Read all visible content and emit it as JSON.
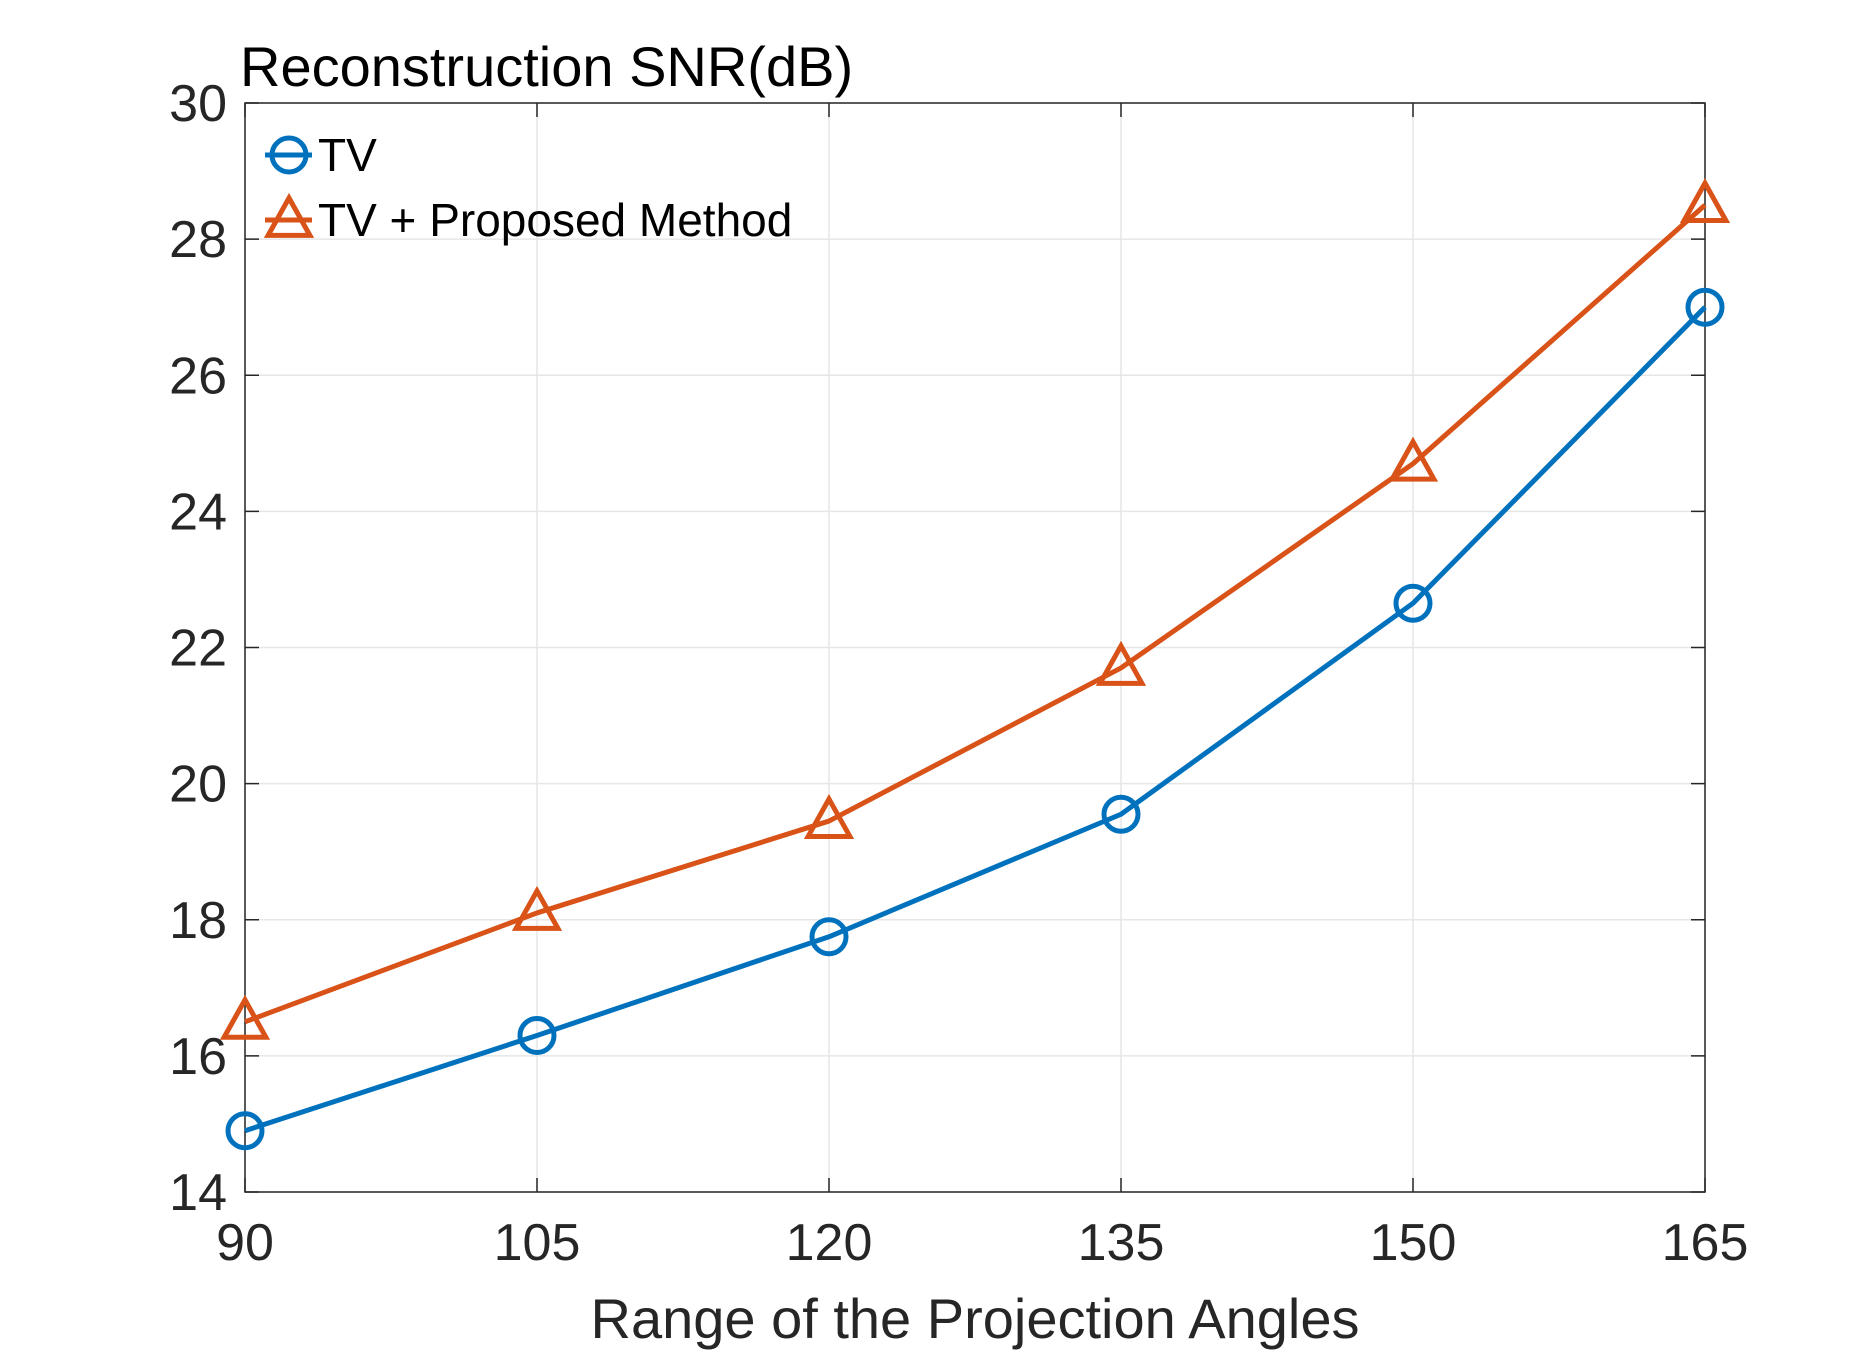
{
  "chart_data": {
    "type": "line",
    "title": "Reconstruction SNR(dB)",
    "xlabel": "Range of the Projection Angles",
    "ylabel": "",
    "x": [
      90,
      105,
      120,
      135,
      150,
      165
    ],
    "x_tick_labels": [
      "90",
      "105",
      "120",
      "135",
      "150",
      "165"
    ],
    "y_tick_labels": [
      "14",
      "16",
      "18",
      "20",
      "22",
      "24",
      "26",
      "28",
      "30"
    ],
    "xlim": [
      90,
      165
    ],
    "ylim": [
      14,
      30
    ],
    "grid": true,
    "legend_position": "top-left",
    "series": [
      {
        "name": "TV",
        "marker": "circle",
        "color": "#0072BD",
        "values": [
          14.9,
          16.3,
          17.75,
          19.55,
          22.65,
          27.0
        ]
      },
      {
        "name": "TV + Proposed Method",
        "marker": "triangle",
        "color": "#D95319",
        "values": [
          16.5,
          18.1,
          19.45,
          21.7,
          24.7,
          28.5
        ]
      }
    ]
  }
}
